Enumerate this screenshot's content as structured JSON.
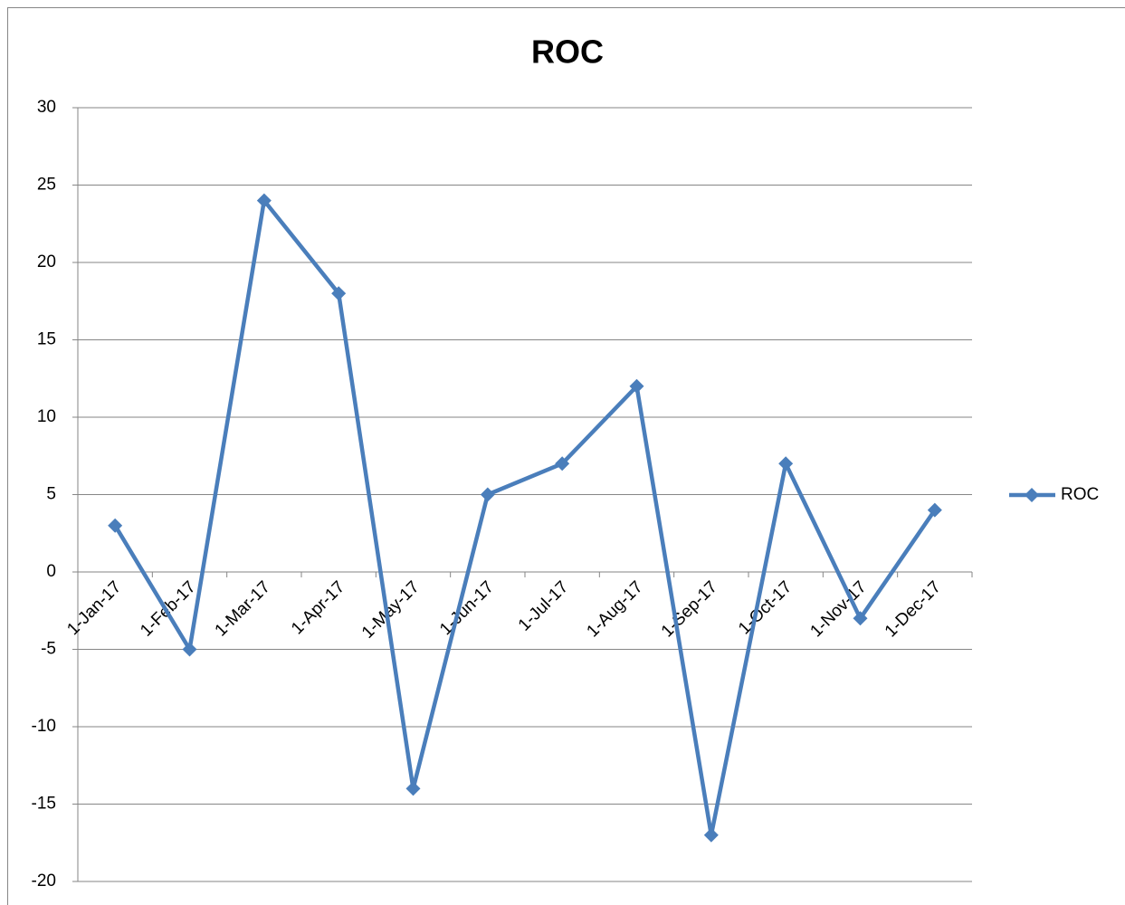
{
  "chart_data": {
    "type": "line",
    "title": "ROC",
    "categories": [
      "1-Jan-17",
      "1-Feb-17",
      "1-Mar-17",
      "1-Apr-17",
      "1-May-17",
      "1-Jun-17",
      "1-Jul-17",
      "1-Aug-17",
      "1-Sep-17",
      "1-Oct-17",
      "1-Nov-17",
      "1-Dec-17"
    ],
    "series": [
      {
        "name": "ROC",
        "color": "#4a7ebb",
        "values": [
          3,
          -5,
          24,
          18,
          -14,
          5,
          7,
          12,
          -17,
          7,
          -3,
          4
        ]
      }
    ],
    "ylim": [
      -20,
      30
    ],
    "yticks": [
      -20,
      -15,
      -10,
      -5,
      0,
      5,
      10,
      15,
      20,
      25,
      30
    ],
    "grid": true,
    "legend": "right"
  }
}
